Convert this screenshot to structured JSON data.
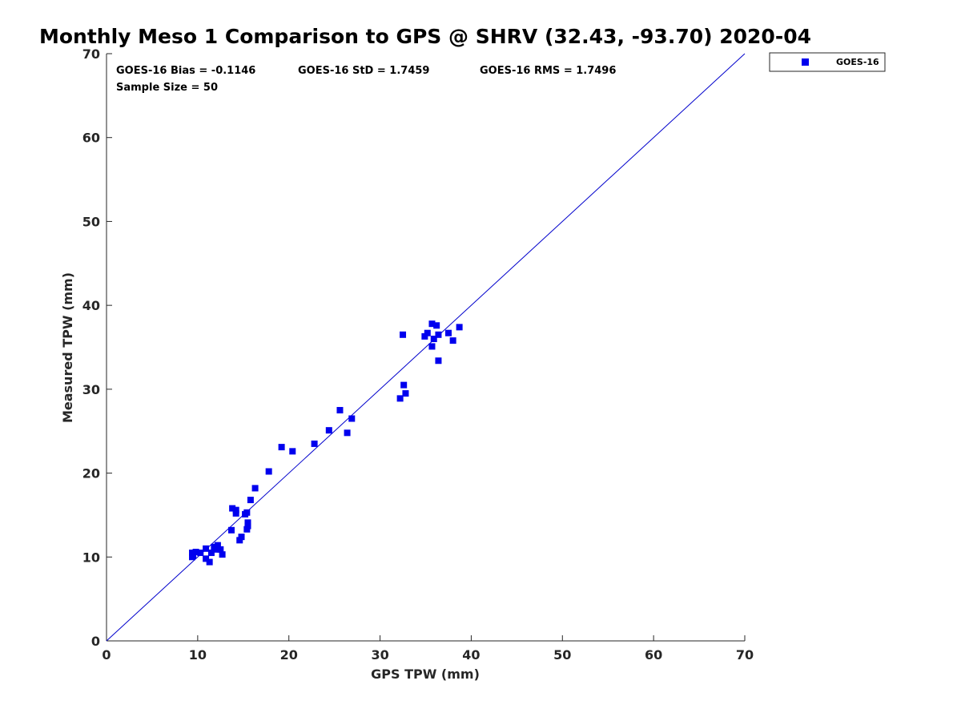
{
  "colors": {
    "marker": "#0000ee",
    "line": "#0000cc",
    "axis": "#262626"
  },
  "chart_data": {
    "type": "scatter",
    "title": "Monthly Meso 1 Comparison to GPS @ SHRV (32.43, -93.70) 2020-04",
    "xlabel": "GPS TPW (mm)",
    "ylabel": "Measured TPW (mm)",
    "xlim": [
      0,
      70
    ],
    "ylim": [
      0,
      70
    ],
    "xticks": [
      "0",
      "10",
      "20",
      "30",
      "40",
      "50",
      "60",
      "70"
    ],
    "yticks": [
      "0",
      "10",
      "20",
      "30",
      "40",
      "50",
      "60",
      "70"
    ],
    "grid": false,
    "legend_position": "outside-top-right",
    "reference_line": {
      "from": [
        0,
        0
      ],
      "to": [
        70,
        70
      ]
    },
    "stats": {
      "bias": "GOES-16 Bias = -0.1146",
      "std": "GOES-16 StD = 1.7459",
      "rms": "GOES-16 RMS = 1.7496",
      "sample": "Sample Size = 50"
    },
    "series": [
      {
        "name": "GOES-16",
        "points": [
          [
            9.4,
            10.0
          ],
          [
            9.4,
            10.5
          ],
          [
            9.5,
            10.2
          ],
          [
            9.8,
            10.6
          ],
          [
            10.3,
            10.5
          ],
          [
            10.9,
            11.0
          ],
          [
            10.9,
            9.8
          ],
          [
            11.3,
            9.4
          ],
          [
            11.5,
            10.5
          ],
          [
            11.8,
            11.2
          ],
          [
            12.1,
            10.9
          ],
          [
            12.2,
            11.4
          ],
          [
            12.5,
            10.9
          ],
          [
            12.7,
            10.3
          ],
          [
            13.7,
            13.2
          ],
          [
            13.8,
            15.8
          ],
          [
            14.2,
            15.6
          ],
          [
            14.2,
            15.2
          ],
          [
            14.6,
            12.0
          ],
          [
            14.8,
            12.4
          ],
          [
            15.2,
            15.1
          ],
          [
            15.4,
            15.3
          ],
          [
            15.4,
            13.3
          ],
          [
            15.5,
            13.7
          ],
          [
            15.5,
            14.1
          ],
          [
            15.8,
            16.8
          ],
          [
            16.3,
            18.2
          ],
          [
            17.8,
            20.2
          ],
          [
            19.2,
            23.1
          ],
          [
            20.4,
            22.6
          ],
          [
            22.8,
            23.5
          ],
          [
            24.4,
            25.1
          ],
          [
            25.6,
            27.5
          ],
          [
            26.4,
            24.8
          ],
          [
            26.9,
            26.5
          ],
          [
            32.2,
            28.9
          ],
          [
            32.5,
            36.5
          ],
          [
            32.6,
            30.5
          ],
          [
            32.8,
            29.5
          ],
          [
            34.9,
            36.3
          ],
          [
            35.2,
            36.7
          ],
          [
            35.7,
            35.1
          ],
          [
            35.7,
            37.8
          ],
          [
            35.9,
            36.0
          ],
          [
            36.2,
            37.6
          ],
          [
            36.4,
            36.5
          ],
          [
            36.4,
            33.4
          ],
          [
            37.5,
            36.7
          ],
          [
            38.0,
            35.8
          ],
          [
            38.7,
            37.4
          ]
        ]
      }
    ]
  }
}
